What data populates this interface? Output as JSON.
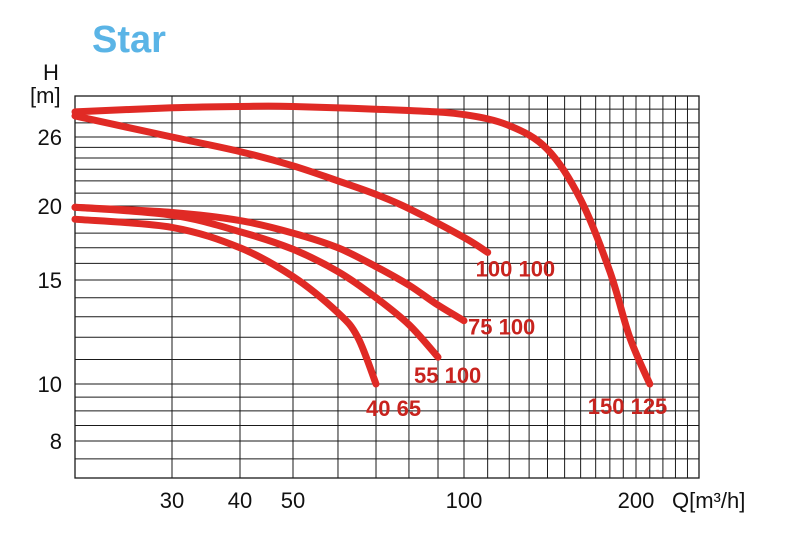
{
  "chart_data": {
    "type": "line",
    "title": "Star",
    "xlabel": "Q[m³/h]",
    "ylabel_line1": "H",
    "ylabel_line2": "[m]",
    "x_scale": "log",
    "y_scale": "log",
    "xlim": [
      20,
      250
    ],
    "ylim": [
      7,
      29
    ],
    "grid": true,
    "x_ticks": [
      30,
      40,
      50,
      100,
      200
    ],
    "y_ticks": [
      8,
      10,
      15,
      20,
      26
    ],
    "colors": {
      "title": "#5ab4e6",
      "curve": "#e02a25",
      "label": "#c8231e",
      "grid": "#1a1a1a"
    },
    "series": [
      {
        "name": "100 100",
        "x": [
          20,
          30,
          40,
          50,
          60,
          70,
          80,
          100,
          110
        ],
        "y": [
          27.5,
          26.0,
          24.6,
          23.3,
          22.0,
          20.9,
          19.8,
          17.7,
          16.7
        ]
      },
      {
        "name": "150 125",
        "x": [
          20,
          30,
          40,
          50,
          80,
          100,
          120,
          140,
          160,
          180,
          195,
          210
        ],
        "y": [
          27.8,
          28.1,
          28.2,
          28.2,
          27.9,
          27.6,
          26.8,
          24.8,
          20.5,
          15.5,
          12.0,
          10.0
        ]
      },
      {
        "name": "75 100",
        "x": [
          20,
          30,
          40,
          50,
          60,
          70,
          80,
          90,
          100
        ],
        "y": [
          19.9,
          19.5,
          18.9,
          18.0,
          17.0,
          15.8,
          14.7,
          13.6,
          12.8
        ]
      },
      {
        "name": "55 100",
        "x": [
          20,
          30,
          40,
          50,
          60,
          70,
          80,
          90
        ],
        "y": [
          19.9,
          19.3,
          18.1,
          16.9,
          15.5,
          14.0,
          12.6,
          11.1
        ]
      },
      {
        "name": "40 65",
        "x": [
          20,
          30,
          40,
          50,
          60,
          65,
          70
        ],
        "y": [
          19.0,
          18.4,
          17.0,
          15.2,
          13.2,
          12.0,
          10.0
        ]
      }
    ]
  }
}
